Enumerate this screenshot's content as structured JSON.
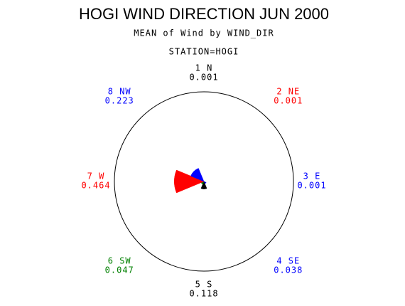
{
  "chart_data": {
    "type": "star",
    "title": "HOGI WIND DIRECTION JUN 2000",
    "subtitle": "MEAN of Wind by WIND_DIR",
    "group_label": "STATION=HOGI",
    "categories": [
      "1 N",
      "2 NE",
      "3 E",
      "4 SE",
      "5 S",
      "6 SW",
      "7 W",
      "8 NW"
    ],
    "values": [
      0.001,
      0.001,
      0.001,
      0.038,
      0.118,
      0.047,
      0.464,
      0.223
    ],
    "colors": [
      "#000000",
      "#ff0000",
      "#0000ff",
      "#0000ff",
      "#000000",
      "#008000",
      "#ff0000",
      "#0000ff"
    ]
  }
}
